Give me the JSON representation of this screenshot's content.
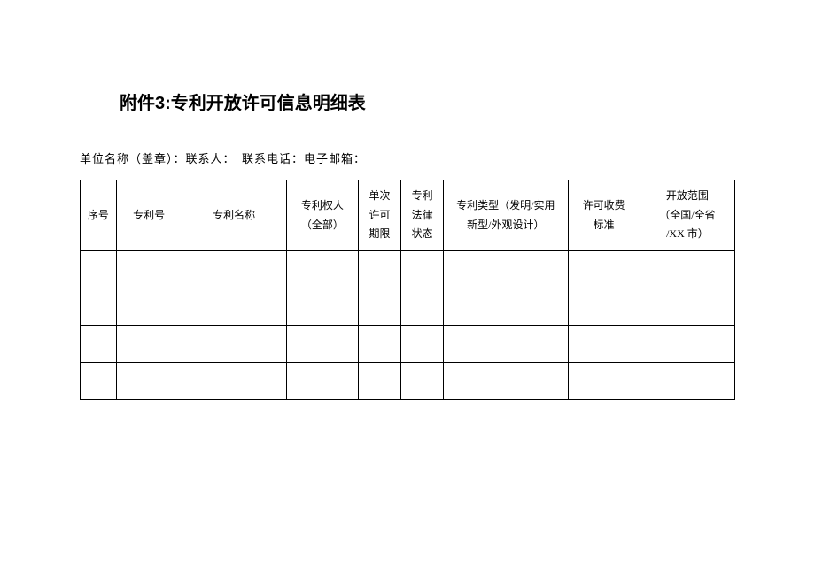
{
  "title": "附件3:专利开放许可信息明细表",
  "subtitle": "单位名称（盖章）：联系人：　联系电话：电子邮箱：",
  "table": {
    "columns": [
      {
        "lines": [
          "序号"
        ],
        "widthClass": "col-0"
      },
      {
        "lines": [
          "专利号"
        ],
        "widthClass": "col-1"
      },
      {
        "lines": [
          "专利名称"
        ],
        "widthClass": "col-2"
      },
      {
        "lines": [
          "专利权人",
          "（全部）"
        ],
        "widthClass": "col-3"
      },
      {
        "lines": [
          "单次",
          "许可",
          "期限"
        ],
        "widthClass": "col-4"
      },
      {
        "lines": [
          "专利",
          "法律",
          "状态"
        ],
        "widthClass": "col-5"
      },
      {
        "lines": [
          "专利类型（发明/实用",
          "新型/外观设计）"
        ],
        "widthClass": "col-6"
      },
      {
        "lines": [
          "许可收费",
          "标准"
        ],
        "widthClass": "col-7"
      },
      {
        "lines": [
          "开放范围",
          "（全国/全省",
          "/XX 市）"
        ],
        "widthClass": "col-8"
      }
    ],
    "rows": [
      [
        "",
        "",
        "",
        "",
        "",
        "",
        "",
        "",
        ""
      ],
      [
        "",
        "",
        "",
        "",
        "",
        "",
        "",
        "",
        ""
      ],
      [
        "",
        "",
        "",
        "",
        "",
        "",
        "",
        "",
        ""
      ],
      [
        "",
        "",
        "",
        "",
        "",
        "",
        "",
        "",
        ""
      ]
    ],
    "border_color": "#000000",
    "text_color": "#000000",
    "header_fontsize": 12,
    "cell_fontsize": 12,
    "header_row_height": 80,
    "data_row_height": 42
  },
  "background_color": "#ffffff",
  "title_fontsize": 20,
  "subtitle_fontsize": 13
}
